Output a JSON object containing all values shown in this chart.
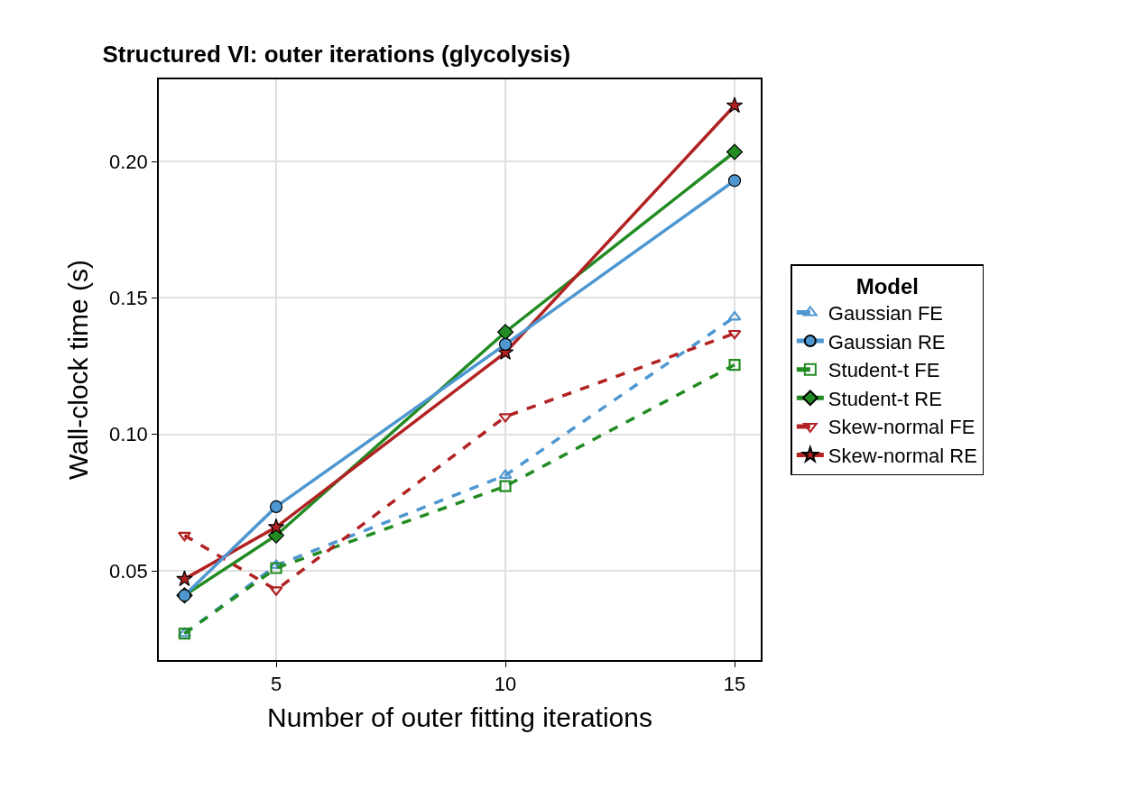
{
  "chart_data": {
    "type": "line",
    "title": "Structured VI: outer iterations (glycolysis)",
    "xlabel": "Number of outer fitting iterations",
    "ylabel": "Wall-clock time (s)",
    "legend_title": "Model",
    "x": [
      3,
      5,
      10,
      15
    ],
    "series": [
      {
        "name": "Gaussian FE",
        "color": "#4e97d1",
        "values": [
          0.027,
          0.052,
          0.085,
          0.143
        ],
        "marker": "triangle-open",
        "line_style": "dashed"
      },
      {
        "name": "Gaussian RE",
        "color": "#4e97d1",
        "values": [
          0.041,
          0.0735,
          0.133,
          0.193
        ],
        "marker": "circle",
        "line_style": "solid"
      },
      {
        "name": "Student-t FE",
        "color": "#228b22",
        "values": [
          0.027,
          0.051,
          0.081,
          0.1255
        ],
        "marker": "square-open",
        "line_style": "dashed"
      },
      {
        "name": "Student-t RE",
        "color": "#228b22",
        "values": [
          0.041,
          0.063,
          0.1375,
          0.2035
        ],
        "marker": "diamond",
        "line_style": "solid"
      },
      {
        "name": "Skew-normal FE",
        "color": "#b22222",
        "values": [
          0.063,
          0.043,
          0.1065,
          0.137
        ],
        "marker": "triangle-down-open",
        "line_style": "dashed"
      },
      {
        "name": "Skew-normal RE",
        "color": "#b22222",
        "values": [
          0.047,
          0.066,
          0.13,
          0.2205
        ],
        "marker": "star",
        "line_style": "solid"
      }
    ],
    "xlim": [
      2.44,
      15.57
    ],
    "xticks": [
      5,
      10,
      15
    ],
    "ylim": [
      0.0173,
      0.2301
    ],
    "yticks": [
      {
        "value": 0.05,
        "label": "0.05"
      },
      {
        "value": 0.1,
        "label": "0.10"
      },
      {
        "value": 0.15,
        "label": "0.15"
      },
      {
        "value": 0.2,
        "label": "0.20"
      }
    ],
    "grid": true,
    "legend": "right"
  }
}
